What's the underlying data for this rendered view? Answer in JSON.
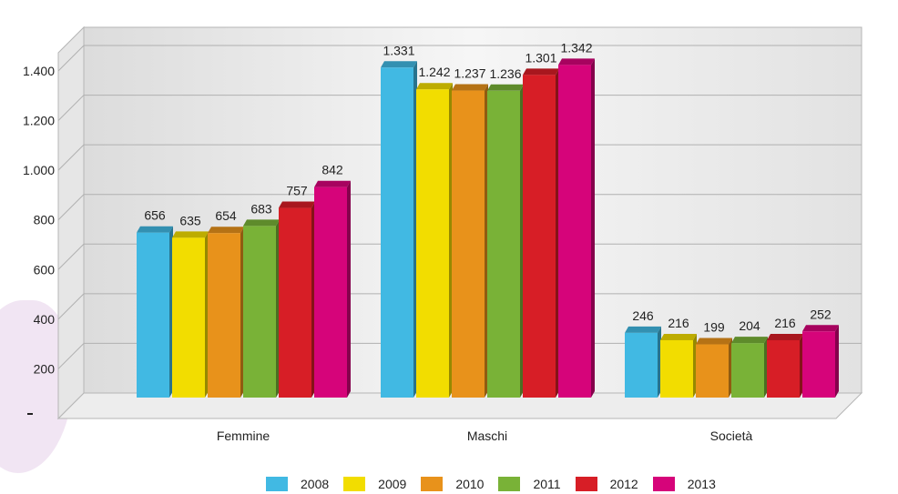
{
  "chart_data": {
    "type": "bar",
    "categories": [
      "Femmine",
      "Maschi",
      "Società"
    ],
    "series": [
      {
        "name": "2008",
        "values": [
          656,
          1331,
          246
        ]
      },
      {
        "name": "2009",
        "values": [
          635,
          1242,
          216
        ]
      },
      {
        "name": "2010",
        "values": [
          654,
          1237,
          199
        ]
      },
      {
        "name": "2011",
        "values": [
          683,
          1236,
          204
        ]
      },
      {
        "name": "2012",
        "values": [
          757,
          1301,
          216
        ]
      },
      {
        "name": "2013",
        "values": [
          842,
          1342,
          252
        ]
      }
    ],
    "value_labels": [
      [
        "656",
        "1.331",
        "246"
      ],
      [
        "635",
        "1.242",
        "216"
      ],
      [
        "654",
        "1.237",
        "199"
      ],
      [
        "683",
        "1.236",
        "204"
      ],
      [
        "757",
        "1.301",
        "216"
      ],
      [
        "842",
        "1.342",
        "252"
      ]
    ],
    "yticks": [
      "200",
      "400",
      "600",
      "800",
      "1.000",
      "1.200",
      "1.400"
    ],
    "ylim": [
      0,
      1400
    ],
    "grid": true,
    "legend_position": "bottom",
    "colors": [
      "#41b9e3",
      "#f2dd00",
      "#e8921b",
      "#79b237",
      "#d71e26",
      "#d6047a"
    ]
  }
}
